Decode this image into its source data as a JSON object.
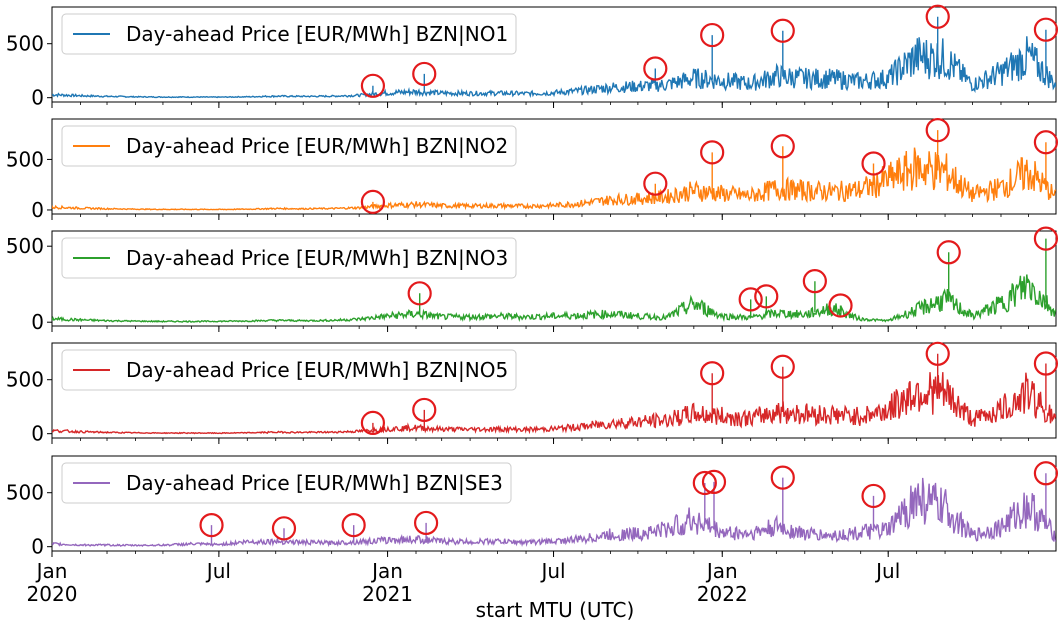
{
  "chart_data": {
    "type": "line",
    "xlabel": "start MTU (UTC)",
    "x_axis": {
      "range": [
        "2020-01-01",
        "2022-12-31"
      ],
      "major_ticks": [
        {
          "date": "2020-01-01",
          "label": "Jan",
          "year": "2020"
        },
        {
          "date": "2020-07-01",
          "label": "Jul",
          "year": ""
        },
        {
          "date": "2021-01-01",
          "label": "Jan",
          "year": "2021"
        },
        {
          "date": "2021-07-01",
          "label": "Jul",
          "year": ""
        },
        {
          "date": "2022-01-01",
          "label": "Jan",
          "year": "2022"
        },
        {
          "date": "2022-07-01",
          "label": "Jul",
          "year": ""
        }
      ],
      "minor_ticks": "monthly"
    },
    "marker": {
      "shape": "circle",
      "color": "#e31a1c",
      "fill": "none"
    },
    "panels": [
      {
        "name": "Day-ahead Price [EUR/MWh] BZN|NO1",
        "color": "#1f77b4",
        "ylim": [
          -40,
          840
        ],
        "yticks": [
          0,
          500
        ],
        "series": [
          [
            "2020-01-01",
            28
          ],
          [
            "2020-02-01",
            18
          ],
          [
            "2020-03-01",
            12
          ],
          [
            "2020-04-01",
            8
          ],
          [
            "2020-05-01",
            6
          ],
          [
            "2020-06-01",
            6
          ],
          [
            "2020-07-01",
            5
          ],
          [
            "2020-08-01",
            8
          ],
          [
            "2020-09-01",
            14
          ],
          [
            "2020-10-01",
            12
          ],
          [
            "2020-11-01",
            14
          ],
          [
            "2020-12-01",
            22
          ],
          [
            "2021-01-01",
            45
          ],
          [
            "2021-02-01",
            55
          ],
          [
            "2021-03-01",
            42
          ],
          [
            "2021-04-01",
            40
          ],
          [
            "2021-05-01",
            42
          ],
          [
            "2021-06-01",
            38
          ],
          [
            "2021-07-01",
            45
          ],
          [
            "2021-08-01",
            65
          ],
          [
            "2021-09-01",
            95
          ],
          [
            "2021-10-01",
            105
          ],
          [
            "2021-11-01",
            120
          ],
          [
            "2021-12-01",
            180
          ],
          [
            "2022-01-01",
            160
          ],
          [
            "2022-02-01",
            130
          ],
          [
            "2022-03-01",
            200
          ],
          [
            "2022-04-01",
            180
          ],
          [
            "2022-05-01",
            175
          ],
          [
            "2022-06-01",
            150
          ],
          [
            "2022-07-01",
            180
          ],
          [
            "2022-08-01",
            380
          ],
          [
            "2022-09-01",
            360
          ],
          [
            "2022-10-01",
            120
          ],
          [
            "2022-11-01",
            230
          ],
          [
            "2022-12-01",
            380
          ],
          [
            "2022-12-31",
            120
          ]
        ],
        "peaks": [
          [
            "2020-12-16",
            110
          ],
          [
            "2021-02-10",
            220
          ],
          [
            "2021-10-20",
            270
          ],
          [
            "2021-12-21",
            580
          ],
          [
            "2022-03-08",
            620
          ],
          [
            "2022-08-24",
            750
          ],
          [
            "2022-12-20",
            630
          ]
        ]
      },
      {
        "name": "Day-ahead Price [EUR/MWh] BZN|NO2",
        "color": "#ff7f0e",
        "ylim": [
          -40,
          900
        ],
        "yticks": [
          0,
          500
        ],
        "series": [
          [
            "2020-01-01",
            28
          ],
          [
            "2020-02-01",
            18
          ],
          [
            "2020-03-01",
            12
          ],
          [
            "2020-04-01",
            8
          ],
          [
            "2020-05-01",
            6
          ],
          [
            "2020-06-01",
            6
          ],
          [
            "2020-07-01",
            5
          ],
          [
            "2020-08-01",
            8
          ],
          [
            "2020-09-01",
            14
          ],
          [
            "2020-10-01",
            12
          ],
          [
            "2020-11-01",
            14
          ],
          [
            "2020-12-01",
            22
          ],
          [
            "2021-01-01",
            45
          ],
          [
            "2021-02-01",
            55
          ],
          [
            "2021-03-01",
            42
          ],
          [
            "2021-04-01",
            40
          ],
          [
            "2021-05-01",
            42
          ],
          [
            "2021-06-01",
            38
          ],
          [
            "2021-07-01",
            45
          ],
          [
            "2021-08-01",
            65
          ],
          [
            "2021-09-01",
            100
          ],
          [
            "2021-10-01",
            110
          ],
          [
            "2021-11-01",
            130
          ],
          [
            "2021-12-01",
            190
          ],
          [
            "2022-01-01",
            160
          ],
          [
            "2022-02-01",
            140
          ],
          [
            "2022-03-01",
            210
          ],
          [
            "2022-04-01",
            190
          ],
          [
            "2022-05-01",
            180
          ],
          [
            "2022-06-01",
            200
          ],
          [
            "2022-07-01",
            300
          ],
          [
            "2022-08-01",
            420
          ],
          [
            "2022-09-01",
            380
          ],
          [
            "2022-10-01",
            150
          ],
          [
            "2022-11-01",
            220
          ],
          [
            "2022-12-01",
            380
          ],
          [
            "2022-12-31",
            130
          ]
        ],
        "peaks": [
          [
            "2020-12-16",
            80
          ],
          [
            "2021-10-20",
            260
          ],
          [
            "2021-12-21",
            570
          ],
          [
            "2022-03-08",
            630
          ],
          [
            "2022-06-15",
            460
          ],
          [
            "2022-08-24",
            790
          ],
          [
            "2022-12-20",
            670
          ]
        ]
      },
      {
        "name": "Day-ahead Price [EUR/MWh] BZN|NO3",
        "color": "#2ca02c",
        "ylim": [
          -25,
          600
        ],
        "yticks": [
          0,
          500
        ],
        "series": [
          [
            "2020-01-01",
            22
          ],
          [
            "2020-02-01",
            15
          ],
          [
            "2020-03-01",
            10
          ],
          [
            "2020-04-01",
            7
          ],
          [
            "2020-05-01",
            5
          ],
          [
            "2020-06-01",
            5
          ],
          [
            "2020-07-01",
            6
          ],
          [
            "2020-08-01",
            8
          ],
          [
            "2020-09-01",
            12
          ],
          [
            "2020-10-01",
            10
          ],
          [
            "2020-11-01",
            12
          ],
          [
            "2020-12-01",
            20
          ],
          [
            "2021-01-01",
            40
          ],
          [
            "2021-02-01",
            55
          ],
          [
            "2021-03-01",
            35
          ],
          [
            "2021-04-01",
            35
          ],
          [
            "2021-05-01",
            40
          ],
          [
            "2021-06-01",
            35
          ],
          [
            "2021-07-01",
            40
          ],
          [
            "2021-08-01",
            45
          ],
          [
            "2021-09-01",
            55
          ],
          [
            "2021-10-01",
            40
          ],
          [
            "2021-11-01",
            30
          ],
          [
            "2021-12-01",
            120
          ],
          [
            "2022-01-01",
            40
          ],
          [
            "2022-02-01",
            30
          ],
          [
            "2022-03-01",
            60
          ],
          [
            "2022-04-01",
            50
          ],
          [
            "2022-05-01",
            90
          ],
          [
            "2022-06-01",
            20
          ],
          [
            "2022-07-01",
            10
          ],
          [
            "2022-08-01",
            80
          ],
          [
            "2022-09-01",
            150
          ],
          [
            "2022-10-01",
            40
          ],
          [
            "2022-11-01",
            120
          ],
          [
            "2022-12-01",
            250
          ],
          [
            "2022-12-31",
            60
          ]
        ],
        "peaks": [
          [
            "2021-02-05",
            190
          ],
          [
            "2022-02-01",
            150
          ],
          [
            "2022-02-18",
            170
          ],
          [
            "2022-04-12",
            270
          ],
          [
            "2022-05-10",
            110
          ],
          [
            "2022-09-05",
            460
          ],
          [
            "2022-12-20",
            550
          ]
        ]
      },
      {
        "name": "Day-ahead Price [EUR/MWh] BZN|NO5",
        "color": "#d62728",
        "ylim": [
          -40,
          840
        ],
        "yticks": [
          0,
          500
        ],
        "series": [
          [
            "2020-01-01",
            28
          ],
          [
            "2020-02-01",
            18
          ],
          [
            "2020-03-01",
            12
          ],
          [
            "2020-04-01",
            8
          ],
          [
            "2020-05-01",
            6
          ],
          [
            "2020-06-01",
            6
          ],
          [
            "2020-07-01",
            5
          ],
          [
            "2020-08-01",
            8
          ],
          [
            "2020-09-01",
            14
          ],
          [
            "2020-10-01",
            12
          ],
          [
            "2020-11-01",
            14
          ],
          [
            "2020-12-01",
            22
          ],
          [
            "2021-01-01",
            45
          ],
          [
            "2021-02-01",
            55
          ],
          [
            "2021-03-01",
            42
          ],
          [
            "2021-04-01",
            40
          ],
          [
            "2021-05-01",
            42
          ],
          [
            "2021-06-01",
            38
          ],
          [
            "2021-07-01",
            45
          ],
          [
            "2021-08-01",
            65
          ],
          [
            "2021-09-01",
            95
          ],
          [
            "2021-10-01",
            110
          ],
          [
            "2021-11-01",
            125
          ],
          [
            "2021-12-01",
            185
          ],
          [
            "2022-01-01",
            160
          ],
          [
            "2022-02-01",
            140
          ],
          [
            "2022-03-01",
            205
          ],
          [
            "2022-04-01",
            185
          ],
          [
            "2022-05-01",
            175
          ],
          [
            "2022-06-01",
            160
          ],
          [
            "2022-07-01",
            220
          ],
          [
            "2022-08-01",
            400
          ],
          [
            "2022-09-01",
            370
          ],
          [
            "2022-10-01",
            130
          ],
          [
            "2022-11-01",
            220
          ],
          [
            "2022-12-01",
            380
          ],
          [
            "2022-12-31",
            120
          ]
        ],
        "peaks": [
          [
            "2020-12-16",
            100
          ],
          [
            "2021-02-10",
            220
          ],
          [
            "2021-12-21",
            560
          ],
          [
            "2022-03-08",
            620
          ],
          [
            "2022-08-24",
            740
          ],
          [
            "2022-12-20",
            650
          ]
        ]
      },
      {
        "name": "Day-ahead Price [EUR/MWh] BZN|SE3",
        "color": "#9467bd",
        "ylim": [
          -40,
          840
        ],
        "yticks": [
          0,
          500
        ],
        "series": [
          [
            "2020-01-01",
            25
          ],
          [
            "2020-02-01",
            15
          ],
          [
            "2020-03-01",
            15
          ],
          [
            "2020-04-01",
            12
          ],
          [
            "2020-05-01",
            15
          ],
          [
            "2020-06-01",
            25
          ],
          [
            "2020-07-01",
            20
          ],
          [
            "2020-08-01",
            45
          ],
          [
            "2020-09-01",
            50
          ],
          [
            "2020-10-01",
            40
          ],
          [
            "2020-11-01",
            35
          ],
          [
            "2020-12-01",
            45
          ],
          [
            "2021-01-01",
            60
          ],
          [
            "2021-02-01",
            70
          ],
          [
            "2021-03-01",
            50
          ],
          [
            "2021-04-01",
            45
          ],
          [
            "2021-05-01",
            50
          ],
          [
            "2021-06-01",
            40
          ],
          [
            "2021-07-01",
            50
          ],
          [
            "2021-08-01",
            70
          ],
          [
            "2021-09-01",
            110
          ],
          [
            "2021-10-01",
            120
          ],
          [
            "2021-11-01",
            160
          ],
          [
            "2021-12-01",
            250
          ],
          [
            "2022-01-01",
            130
          ],
          [
            "2022-02-01",
            120
          ],
          [
            "2022-03-01",
            180
          ],
          [
            "2022-04-01",
            120
          ],
          [
            "2022-05-01",
            100
          ],
          [
            "2022-06-01",
            130
          ],
          [
            "2022-07-01",
            150
          ],
          [
            "2022-08-01",
            450
          ],
          [
            "2022-09-01",
            350
          ],
          [
            "2022-10-01",
            100
          ],
          [
            "2022-11-01",
            180
          ],
          [
            "2022-12-01",
            380
          ],
          [
            "2022-12-31",
            100
          ]
        ],
        "peaks": [
          [
            "2020-06-23",
            200
          ],
          [
            "2020-09-10",
            170
          ],
          [
            "2020-11-25",
            200
          ],
          [
            "2021-02-12",
            220
          ],
          [
            "2021-12-13",
            590
          ],
          [
            "2021-12-23",
            600
          ],
          [
            "2022-03-08",
            640
          ],
          [
            "2022-06-15",
            470
          ],
          [
            "2022-12-20",
            680
          ]
        ]
      }
    ]
  }
}
